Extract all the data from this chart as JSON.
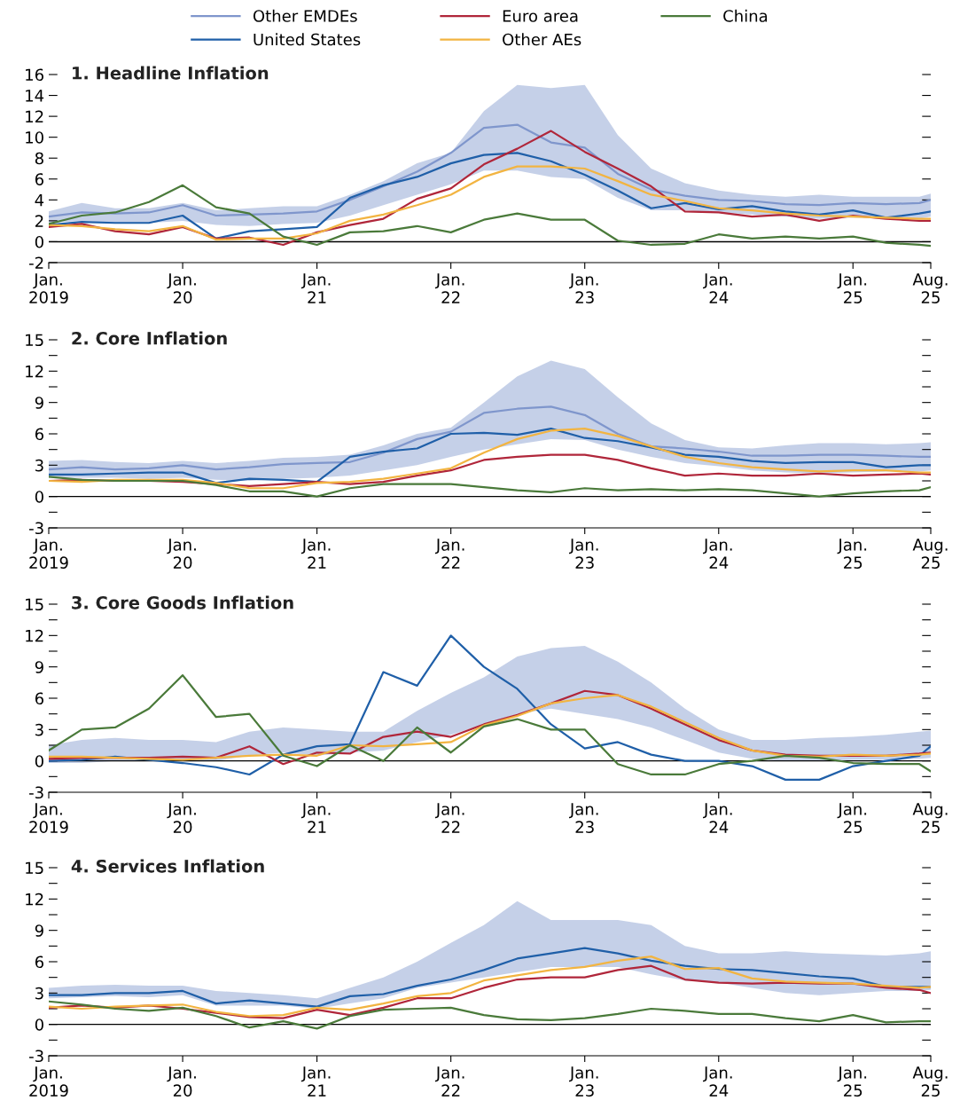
{
  "chart_data": [
    {
      "type": "line",
      "title": "1. Headline Inflation",
      "legend": "top",
      "x": [
        "2019-01",
        "2019-04",
        "2019-07",
        "2019-10",
        "2020-01",
        "2020-04",
        "2020-07",
        "2020-10",
        "2021-01",
        "2021-04",
        "2021-07",
        "2021-10",
        "2022-01",
        "2022-04",
        "2022-07",
        "2022-10",
        "2023-01",
        "2023-04",
        "2023-07",
        "2023-10",
        "2024-01",
        "2024-04",
        "2024-07",
        "2024-10",
        "2025-01",
        "2025-04",
        "2025-07",
        "2025-08"
      ],
      "xlim": [
        "2019-01",
        "2025-08"
      ],
      "xticks": [
        {
          "value": "2019-01",
          "label": "Jan.\n2019"
        },
        {
          "value": "2020-01",
          "label": "Jan.\n20"
        },
        {
          "value": "2021-01",
          "label": "Jan.\n21"
        },
        {
          "value": "2022-01",
          "label": "Jan.\n22"
        },
        {
          "value": "2023-01",
          "label": "Jan.\n23"
        },
        {
          "value": "2024-01",
          "label": "Jan.\n24"
        },
        {
          "value": "2025-01",
          "label": "Jan.\n25"
        },
        {
          "value": "2025-08",
          "label": "Aug.\n25"
        }
      ],
      "ylim": [
        -2,
        16
      ],
      "yticks": [
        -2,
        0,
        2,
        4,
        6,
        8,
        10,
        12,
        14,
        16
      ],
      "ref_lines": [
        {
          "axis": "y",
          "value": 0,
          "color": "#000000"
        }
      ],
      "series": [
        {
          "name": "Other EMDEs",
          "color": "#7f96cc",
          "values": [
            2.4,
            2.8,
            2.7,
            2.8,
            3.5,
            2.5,
            2.6,
            2.7,
            2.9,
            4.0,
            5.3,
            6.7,
            8.5,
            10.9,
            11.2,
            9.5,
            9.0,
            6.5,
            5.0,
            4.4,
            4.0,
            3.9,
            3.6,
            3.5,
            3.7,
            3.6,
            3.7,
            4.0
          ],
          "lower": [
            1.8,
            2.0,
            1.8,
            1.8,
            2.0,
            1.6,
            1.5,
            1.7,
            1.8,
            2.5,
            3.5,
            4.5,
            5.5,
            6.8,
            6.8,
            6.2,
            6.0,
            4.2,
            3.0,
            3.0,
            2.8,
            2.6,
            2.4,
            2.2,
            2.3,
            2.2,
            2.2,
            2.4
          ],
          "upper": [
            2.9,
            3.7,
            3.2,
            3.2,
            3.7,
            3.0,
            3.2,
            3.4,
            3.4,
            4.5,
            5.8,
            7.5,
            8.5,
            12.5,
            15.0,
            14.7,
            15.0,
            10.2,
            7.0,
            5.6,
            4.9,
            4.5,
            4.3,
            4.5,
            4.3,
            4.3,
            4.3,
            4.6
          ]
        },
        {
          "name": "United States",
          "color": "#1f5fa8",
          "values": [
            1.6,
            1.9,
            1.8,
            1.8,
            2.5,
            0.3,
            1.0,
            1.2,
            1.4,
            4.2,
            5.4,
            6.2,
            7.5,
            8.3,
            8.5,
            7.7,
            6.4,
            4.9,
            3.2,
            3.7,
            3.1,
            3.4,
            2.9,
            2.6,
            3.0,
            2.3,
            2.7,
            2.9
          ]
        },
        {
          "name": "Euro area",
          "color": "#b0263a",
          "values": [
            1.4,
            1.7,
            1.0,
            0.7,
            1.4,
            0.3,
            0.4,
            -0.3,
            0.9,
            1.6,
            2.2,
            4.1,
            5.1,
            7.4,
            8.9,
            10.6,
            8.6,
            7.0,
            5.3,
            2.9,
            2.8,
            2.4,
            2.6,
            2.0,
            2.5,
            2.2,
            2.0,
            2.0
          ]
        },
        {
          "name": "Other AEs",
          "color": "#f2b441",
          "values": [
            1.6,
            1.5,
            1.2,
            1.0,
            1.5,
            0.2,
            0.3,
            0.3,
            0.8,
            2.0,
            2.6,
            3.5,
            4.5,
            6.2,
            7.2,
            7.2,
            7.0,
            5.8,
            4.5,
            3.9,
            3.2,
            3.0,
            2.7,
            2.5,
            2.4,
            2.3,
            2.2,
            2.2
          ]
        },
        {
          "name": "China",
          "color": "#4a7a3a",
          "values": [
            1.7,
            2.5,
            2.8,
            3.8,
            5.4,
            3.3,
            2.7,
            0.5,
            -0.3,
            0.9,
            1.0,
            1.5,
            0.9,
            2.1,
            2.7,
            2.1,
            2.1,
            0.1,
            -0.3,
            -0.2,
            0.7,
            0.3,
            0.5,
            0.3,
            0.5,
            -0.1,
            -0.3,
            -0.4
          ]
        }
      ]
    },
    {
      "type": "line",
      "title": "2. Core Inflation",
      "x": [
        "2019-01",
        "2019-04",
        "2019-07",
        "2019-10",
        "2020-01",
        "2020-04",
        "2020-07",
        "2020-10",
        "2021-01",
        "2021-04",
        "2021-07",
        "2021-10",
        "2022-01",
        "2022-04",
        "2022-07",
        "2022-10",
        "2023-01",
        "2023-04",
        "2023-07",
        "2023-10",
        "2024-01",
        "2024-04",
        "2024-07",
        "2024-10",
        "2025-01",
        "2025-04",
        "2025-07",
        "2025-08"
      ],
      "xlim": [
        "2019-01",
        "2025-08"
      ],
      "xticks": [
        {
          "value": "2019-01",
          "label": "Jan.\n2019"
        },
        {
          "value": "2020-01",
          "label": "Jan.\n20"
        },
        {
          "value": "2021-01",
          "label": "Jan.\n21"
        },
        {
          "value": "2022-01",
          "label": "Jan.\n22"
        },
        {
          "value": "2023-01",
          "label": "Jan.\n23"
        },
        {
          "value": "2024-01",
          "label": "Jan.\n24"
        },
        {
          "value": "2025-01",
          "label": "Jan.\n25"
        },
        {
          "value": "2025-08",
          "label": "Aug.\n25"
        }
      ],
      "ylim": [
        -3,
        15
      ],
      "yticks": [
        -3,
        {
          "value": -1.5,
          "label": null
        },
        0,
        {
          "value": 1.5,
          "label": null
        },
        3,
        {
          "value": 4.5,
          "label": null
        },
        6,
        {
          "value": 7.5,
          "label": null
        },
        9,
        {
          "value": 10.5,
          "label": null
        },
        12,
        {
          "value": 13.5,
          "label": null
        },
        15
      ],
      "ref_lines": [
        {
          "axis": "y",
          "value": 0,
          "color": "#000000"
        }
      ],
      "series": [
        {
          "color": "#7f96cc",
          "values": [
            2.6,
            2.8,
            2.6,
            2.7,
            3.0,
            2.6,
            2.8,
            3.1,
            3.2,
            3.3,
            4.2,
            5.5,
            6.2,
            8.0,
            8.4,
            8.6,
            7.8,
            6.0,
            4.8,
            4.6,
            4.3,
            3.9,
            3.9,
            4.0,
            4.0,
            3.9,
            3.8,
            3.8
          ],
          "lower": [
            1.8,
            1.8,
            1.8,
            1.7,
            1.8,
            1.6,
            1.5,
            1.7,
            1.8,
            2.0,
            2.5,
            3.0,
            3.8,
            4.5,
            5.0,
            5.5,
            5.4,
            4.5,
            3.8,
            3.2,
            2.9,
            2.5,
            2.3,
            2.2,
            2.3,
            2.4,
            2.4,
            2.5
          ],
          "upper": [
            3.4,
            3.5,
            3.3,
            3.2,
            3.4,
            3.2,
            3.4,
            3.7,
            3.8,
            4.0,
            4.9,
            6.0,
            6.6,
            9.0,
            11.5,
            13.0,
            12.2,
            9.5,
            7.0,
            5.4,
            4.7,
            4.6,
            4.9,
            5.1,
            5.1,
            5.0,
            5.1,
            5.2
          ]
        },
        {
          "color": "#1f5fa8",
          "values": [
            2.1,
            2.1,
            2.2,
            2.3,
            2.3,
            1.3,
            1.7,
            1.6,
            1.4,
            3.8,
            4.3,
            4.6,
            6.0,
            6.1,
            5.9,
            6.5,
            5.6,
            5.3,
            4.7,
            4.0,
            3.8,
            3.4,
            3.2,
            3.3,
            3.3,
            2.8,
            3.0,
            3.0
          ]
        },
        {
          "color": "#b0263a",
          "values": [
            1.5,
            1.6,
            1.5,
            1.5,
            1.4,
            1.2,
            1.0,
            1.2,
            1.4,
            1.2,
            1.4,
            2.0,
            2.5,
            3.5,
            3.8,
            4.0,
            4.0,
            3.5,
            2.7,
            2.0,
            2.2,
            2.0,
            2.0,
            2.2,
            2.0,
            2.1,
            2.2,
            2.1
          ]
        },
        {
          "color": "#f2b441",
          "values": [
            1.5,
            1.4,
            1.6,
            1.6,
            1.6,
            1.3,
            0.8,
            0.8,
            1.3,
            1.4,
            1.7,
            2.2,
            2.7,
            4.2,
            5.5,
            6.3,
            6.5,
            5.8,
            4.8,
            3.8,
            3.2,
            2.8,
            2.6,
            2.4,
            2.5,
            2.5,
            2.3,
            2.3
          ]
        },
        {
          "color": "#4a7a3a",
          "values": [
            1.9,
            1.6,
            1.5,
            1.5,
            1.5,
            1.1,
            0.5,
            0.5,
            0.0,
            0.8,
            1.2,
            1.2,
            1.2,
            0.9,
            0.6,
            0.4,
            0.8,
            0.6,
            0.7,
            0.6,
            0.7,
            0.6,
            0.3,
            0.0,
            0.3,
            0.5,
            0.6,
            0.9
          ]
        }
      ]
    },
    {
      "type": "line",
      "title": "3. Core Goods Inflation",
      "x": [
        "2019-01",
        "2019-04",
        "2019-07",
        "2019-10",
        "2020-01",
        "2020-04",
        "2020-07",
        "2020-10",
        "2021-01",
        "2021-04",
        "2021-07",
        "2021-10",
        "2022-01",
        "2022-04",
        "2022-07",
        "2022-10",
        "2023-01",
        "2023-04",
        "2023-07",
        "2023-10",
        "2024-01",
        "2024-04",
        "2024-07",
        "2024-10",
        "2025-01",
        "2025-04",
        "2025-07",
        "2025-08"
      ],
      "xlim": [
        "2019-01",
        "2025-08"
      ],
      "xticks": [
        {
          "value": "2019-01",
          "label": "Jan.\n2019"
        },
        {
          "value": "2020-01",
          "label": "Jan.\n20"
        },
        {
          "value": "2021-01",
          "label": "Jan.\n21"
        },
        {
          "value": "2022-01",
          "label": "Jan.\n22"
        },
        {
          "value": "2023-01",
          "label": "Jan.\n23"
        },
        {
          "value": "2024-01",
          "label": "Jan.\n24"
        },
        {
          "value": "2025-01",
          "label": "Jan.\n25"
        },
        {
          "value": "2025-08",
          "label": "Aug.\n25"
        }
      ],
      "ylim": [
        -3,
        15
      ],
      "yticks": [
        -3,
        {
          "value": -1.5,
          "label": null
        },
        0,
        {
          "value": 1.5,
          "label": null
        },
        3,
        {
          "value": 4.5,
          "label": null
        },
        6,
        {
          "value": 7.5,
          "label": null
        },
        9,
        {
          "value": 10.5,
          "label": null
        },
        12,
        {
          "value": 13.5,
          "label": null
        },
        15
      ],
      "ref_lines": [
        {
          "axis": "y",
          "value": 0,
          "color": "#000000"
        }
      ],
      "series": [
        {
          "color": "#7f96cc",
          "values": [
            null,
            null,
            null,
            null,
            null,
            null,
            null,
            null,
            null,
            null,
            null,
            null,
            null,
            null,
            null,
            null,
            null,
            null,
            null,
            null,
            null,
            null,
            null,
            null,
            null,
            null,
            null,
            null
          ],
          "lower": [
            -0.2,
            -0.2,
            0.0,
            0.0,
            0.0,
            0.0,
            0.5,
            0.8,
            0.5,
            0.8,
            1.0,
            1.8,
            2.5,
            3.5,
            4.5,
            5.0,
            4.5,
            4.0,
            3.2,
            2.0,
            0.8,
            0.2,
            0.0,
            0.0,
            0.1,
            0.1,
            0.2,
            0.3
          ],
          "upper": [
            1.5,
            2.0,
            2.2,
            2.0,
            2.0,
            1.8,
            2.8,
            3.2,
            3.0,
            2.8,
            2.8,
            4.8,
            6.5,
            8.0,
            10.0,
            10.8,
            11.0,
            9.5,
            7.5,
            5.0,
            3.0,
            2.0,
            2.0,
            2.2,
            2.3,
            2.5,
            2.8,
            2.9
          ]
        },
        {
          "color": "#1f5fa8",
          "values": [
            0.0,
            0.1,
            0.4,
            0.1,
            -0.2,
            -0.6,
            -1.3,
            0.6,
            1.4,
            1.6,
            8.5,
            7.2,
            12.0,
            9.0,
            6.9,
            3.5,
            1.2,
            1.8,
            0.6,
            0.0,
            0.0,
            -0.5,
            -1.8,
            -1.8,
            -0.5,
            0.0,
            0.5,
            1.4
          ]
        },
        {
          "color": "#b0263a",
          "values": [
            0.2,
            0.3,
            0.3,
            0.3,
            0.4,
            0.3,
            1.4,
            -0.3,
            0.8,
            0.7,
            2.3,
            2.8,
            2.3,
            3.5,
            4.4,
            5.5,
            6.7,
            6.3,
            5.0,
            3.5,
            2.0,
            1.0,
            0.6,
            0.5,
            0.5,
            0.5,
            0.7,
            0.8
          ]
        },
        {
          "color": "#f2b441",
          "values": [
            0.4,
            0.4,
            0.3,
            0.2,
            0.1,
            0.3,
            0.5,
            0.6,
            0.5,
            1.5,
            1.4,
            1.6,
            1.8,
            3.4,
            4.3,
            5.5,
            6.0,
            6.3,
            5.2,
            3.7,
            2.2,
            1.0,
            0.5,
            0.4,
            0.6,
            0.5,
            0.6,
            0.7
          ]
        },
        {
          "color": "#4a7a3a",
          "values": [
            1.0,
            3.0,
            3.2,
            5.0,
            8.2,
            4.2,
            4.5,
            0.5,
            -0.5,
            1.5,
            0.0,
            3.2,
            0.8,
            3.3,
            4.0,
            3.0,
            3.0,
            -0.3,
            -1.3,
            -1.3,
            -0.3,
            0.0,
            0.5,
            0.3,
            -0.2,
            -0.3,
            -0.3,
            -1.0
          ]
        }
      ]
    },
    {
      "type": "line",
      "title": "4. Services Inflation",
      "x": [
        "2019-01",
        "2019-04",
        "2019-07",
        "2019-10",
        "2020-01",
        "2020-04",
        "2020-07",
        "2020-10",
        "2021-01",
        "2021-04",
        "2021-07",
        "2021-10",
        "2022-01",
        "2022-04",
        "2022-07",
        "2022-10",
        "2023-01",
        "2023-04",
        "2023-07",
        "2023-10",
        "2024-01",
        "2024-04",
        "2024-07",
        "2024-10",
        "2025-01",
        "2025-04",
        "2025-07",
        "2025-08"
      ],
      "xlim": [
        "2019-01",
        "2025-08"
      ],
      "xticks": [
        {
          "value": "2019-01",
          "label": "Jan.\n2019"
        },
        {
          "value": "2020-01",
          "label": "Jan.\n20"
        },
        {
          "value": "2021-01",
          "label": "Jan.\n21"
        },
        {
          "value": "2022-01",
          "label": "Jan.\n22"
        },
        {
          "value": "2023-01",
          "label": "Jan.\n23"
        },
        {
          "value": "2024-01",
          "label": "Jan.\n24"
        },
        {
          "value": "2025-01",
          "label": "Jan.\n25"
        },
        {
          "value": "2025-08",
          "label": "Aug.\n25"
        }
      ],
      "ylim": [
        -3,
        15
      ],
      "yticks": [
        -3,
        {
          "value": -1.5,
          "label": null
        },
        0,
        {
          "value": 1.5,
          "label": null
        },
        3,
        {
          "value": 4.5,
          "label": null
        },
        6,
        {
          "value": 7.5,
          "label": null
        },
        9,
        {
          "value": 10.5,
          "label": null
        },
        12,
        {
          "value": 13.5,
          "label": null
        },
        15
      ],
      "ref_lines": [
        {
          "axis": "y",
          "value": 0,
          "color": "#000000"
        }
      ],
      "series": [
        {
          "color": "#7f96cc",
          "values": [
            null,
            null,
            null,
            null,
            null,
            null,
            null,
            null,
            null,
            null,
            null,
            null,
            null,
            null,
            null,
            null,
            null,
            null,
            null,
            null,
            null,
            null,
            null,
            null,
            null,
            null,
            null,
            null
          ],
          "lower": [
            2.5,
            2.6,
            2.7,
            2.6,
            2.8,
            1.8,
            1.8,
            1.8,
            1.5,
            2.0,
            2.5,
            3.5,
            4.0,
            4.5,
            5.0,
            5.5,
            5.5,
            5.5,
            4.8,
            4.2,
            4.0,
            3.5,
            3.0,
            2.8,
            3.0,
            3.2,
            3.2,
            3.3
          ],
          "upper": [
            3.5,
            3.7,
            3.8,
            3.7,
            3.7,
            3.2,
            3.0,
            2.8,
            2.5,
            3.5,
            4.5,
            6.0,
            7.8,
            9.5,
            11.8,
            10.0,
            10.0,
            10.0,
            9.5,
            7.5,
            6.8,
            6.8,
            7.0,
            6.8,
            6.7,
            6.6,
            6.8,
            7.0
          ]
        },
        {
          "color": "#1f5fa8",
          "values": [
            2.8,
            2.8,
            3.0,
            3.0,
            3.2,
            2.0,
            2.3,
            2.0,
            1.7,
            2.7,
            2.9,
            3.7,
            4.3,
            5.2,
            6.3,
            6.8,
            7.3,
            6.8,
            6.1,
            5.6,
            5.3,
            5.2,
            4.9,
            4.6,
            4.4,
            3.6,
            3.6,
            3.6
          ]
        },
        {
          "color": "#b0263a",
          "values": [
            1.6,
            1.8,
            1.6,
            1.8,
            1.5,
            1.1,
            0.7,
            0.6,
            1.4,
            0.9,
            1.6,
            2.5,
            2.5,
            3.5,
            4.3,
            4.5,
            4.5,
            5.2,
            5.6,
            4.3,
            4.0,
            3.9,
            4.0,
            3.9,
            3.9,
            3.5,
            3.3,
            3.0
          ]
        },
        {
          "color": "#f2b441",
          "values": [
            1.7,
            1.5,
            1.7,
            1.8,
            1.9,
            1.2,
            0.8,
            0.9,
            1.6,
            1.4,
            2.0,
            2.7,
            3.0,
            4.2,
            4.7,
            5.2,
            5.5,
            6.1,
            6.5,
            5.3,
            5.4,
            4.4,
            4.1,
            4.0,
            3.9,
            3.7,
            3.5,
            3.6
          ]
        },
        {
          "color": "#4a7a3a",
          "values": [
            2.2,
            1.9,
            1.5,
            1.3,
            1.6,
            0.8,
            -0.3,
            0.3,
            -0.4,
            0.8,
            1.4,
            1.5,
            1.6,
            0.9,
            0.5,
            0.4,
            0.6,
            1.0,
            1.5,
            1.3,
            1.0,
            1.0,
            0.6,
            0.3,
            0.9,
            0.2,
            0.3,
            0.3
          ]
        }
      ]
    }
  ]
}
